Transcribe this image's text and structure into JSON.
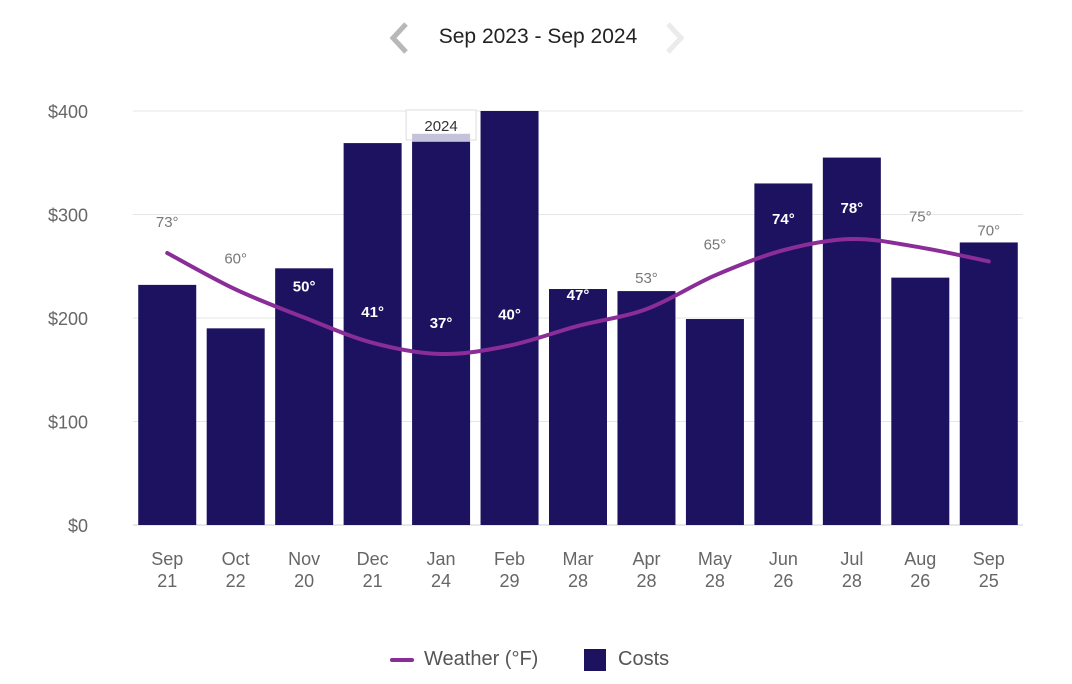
{
  "header": {
    "range_label": "Sep 2023 - Sep 2024",
    "prev_icon": "chevron-left-icon",
    "next_icon": "chevron-right-icon"
  },
  "colors": {
    "bar": "#1c1260",
    "line": "#8a2d98",
    "nav_active": "#b8b8b8",
    "nav_disabled": "#ebebeb",
    "grid": "#e6e6e6",
    "highlight": "#c5c3dc"
  },
  "chart_data": {
    "type": "bar",
    "categories": [
      [
        "Sep",
        "21"
      ],
      [
        "Oct",
        "22"
      ],
      [
        "Nov",
        "20"
      ],
      [
        "Dec",
        "21"
      ],
      [
        "Jan",
        "24"
      ],
      [
        "Feb",
        "29"
      ],
      [
        "Mar",
        "28"
      ],
      [
        "Apr",
        "28"
      ],
      [
        "May",
        "28"
      ],
      [
        "Jun",
        "26"
      ],
      [
        "Jul",
        "28"
      ],
      [
        "Aug",
        "26"
      ],
      [
        "Sep",
        "25"
      ]
    ],
    "ylim": [
      0,
      400
    ],
    "yticks": [
      0,
      100,
      200,
      300,
      400
    ],
    "ytick_labels": [
      "$0",
      "$100",
      "$200",
      "$300",
      "$400"
    ],
    "grid": true,
    "year_marker": "2024",
    "year_marker_index": 4,
    "series": [
      {
        "name": "Costs",
        "type": "bar",
        "values": [
          232,
          190,
          248,
          369,
          378,
          400,
          228,
          226,
          199,
          330,
          355,
          239,
          273
        ]
      },
      {
        "name": "Weather (°F)",
        "type": "line",
        "values": [
          73,
          60,
          50,
          41,
          37,
          40,
          47,
          53,
          65,
          74,
          78,
          75,
          70
        ],
        "labels": [
          "73°",
          "60°",
          "50°",
          "41°",
          "37°",
          "40°",
          "47°",
          "53°",
          "65°",
          "74°",
          "78°",
          "75°",
          "70°"
        ]
      }
    ],
    "legend_position": "bottom"
  },
  "legend": [
    {
      "label": "Weather (°F)"
    },
    {
      "label": "Costs"
    }
  ]
}
